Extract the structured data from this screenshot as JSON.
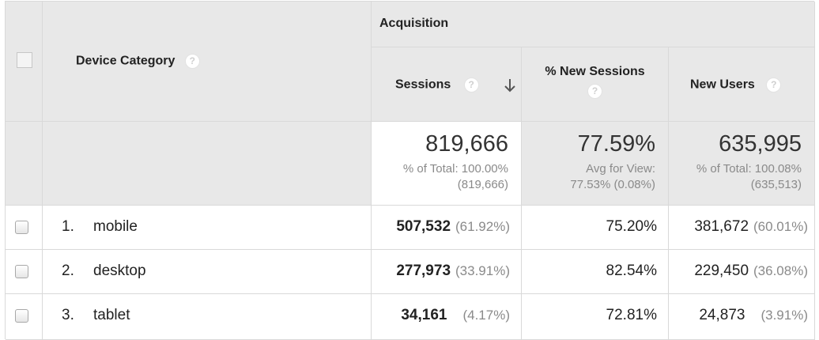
{
  "header": {
    "group_label": "Acquisition",
    "dimension_label": "Device Category",
    "columns": [
      {
        "label": "Sessions"
      },
      {
        "label": "% New Sessions"
      },
      {
        "label": "New Users"
      }
    ],
    "help_glyph": "?",
    "sort_column": "Sessions",
    "sort_direction": "descending"
  },
  "totals": {
    "sessions": {
      "value": "819,666",
      "line1": "% of Total: 100.00%",
      "line2": "(819,666)"
    },
    "new_sessions": {
      "value": "77.59%",
      "line1": "Avg for View:",
      "line2": "77.53% (0.08%)"
    },
    "new_users": {
      "value": "635,995",
      "line1": "% of Total: 100.08%",
      "line2": "(635,513)"
    }
  },
  "rows": [
    {
      "rank": "1.",
      "device": "mobile",
      "sessions": "507,532",
      "sessions_pct": "(61.92%)",
      "new_sessions": "75.20%",
      "new_users": "381,672",
      "new_users_pct": "(60.01%)"
    },
    {
      "rank": "2.",
      "device": "desktop",
      "sessions": "277,973",
      "sessions_pct": "(33.91%)",
      "new_sessions": "82.54%",
      "new_users": "229,450",
      "new_users_pct": "(36.08%)"
    },
    {
      "rank": "3.",
      "device": "tablet",
      "sessions": "34,161",
      "sessions_pct": "(4.17%)",
      "new_sessions": "72.81%",
      "new_users": "24,873",
      "new_users_pct": "(3.91%)"
    }
  ],
  "icons": {
    "help": "question-mark-icon",
    "sort": "arrow-down-icon",
    "checkbox": "checkbox-icon"
  },
  "colors": {
    "header_bg": "#e8e8e8",
    "border": "#d9d9d9",
    "muted_text": "#8a8a8a"
  }
}
